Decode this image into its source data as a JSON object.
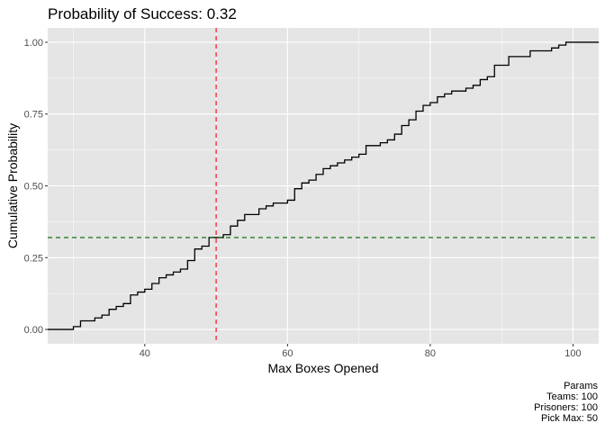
{
  "chart_data": {
    "type": "step",
    "title": "Probability of Success: 0.32",
    "xlabel": "Max Boxes Opened",
    "ylabel": "Cumulative Probability",
    "xlim": [
      26.4,
      103.6
    ],
    "ylim": [
      -0.05,
      1.05
    ],
    "x_ticks": [
      40,
      60,
      80,
      100
    ],
    "y_ticks": [
      0.0,
      0.25,
      0.5,
      0.75,
      1.0
    ],
    "x_tick_labels": [
      "40",
      "60",
      "80",
      "100"
    ],
    "y_tick_labels": [
      "0.00",
      "0.25",
      "0.50",
      "0.75",
      "1.00"
    ],
    "grid": true,
    "colors": {
      "panel": "#e5e5e5",
      "grid": "#ffffff",
      "line": "#000000",
      "vline": "#ff0000",
      "hline": "#006400"
    },
    "vline_x": 50,
    "hline_y": 0.32,
    "series": [
      {
        "x": [
          26.4,
          29,
          30,
          31,
          33,
          34,
          35,
          36,
          37,
          38,
          39,
          40,
          41,
          42,
          43,
          44,
          45,
          46,
          47,
          48,
          49,
          51,
          52,
          53,
          54,
          56,
          57,
          58,
          59,
          60,
          61,
          62,
          63,
          64,
          65,
          66,
          67,
          68,
          69,
          70,
          71,
          73,
          74,
          75,
          76,
          77,
          78,
          79,
          80,
          81,
          82,
          83,
          85,
          86,
          87,
          88,
          89,
          91,
          94,
          97,
          98,
          99,
          103.6
        ],
        "y": [
          0.0,
          0.0,
          0.01,
          0.03,
          0.04,
          0.05,
          0.07,
          0.08,
          0.09,
          0.12,
          0.13,
          0.14,
          0.16,
          0.18,
          0.19,
          0.2,
          0.21,
          0.24,
          0.28,
          0.29,
          0.32,
          0.33,
          0.36,
          0.38,
          0.4,
          0.42,
          0.43,
          0.44,
          0.44,
          0.45,
          0.49,
          0.51,
          0.52,
          0.54,
          0.56,
          0.57,
          0.58,
          0.59,
          0.6,
          0.61,
          0.64,
          0.65,
          0.66,
          0.68,
          0.71,
          0.73,
          0.76,
          0.78,
          0.79,
          0.81,
          0.82,
          0.83,
          0.84,
          0.85,
          0.87,
          0.88,
          0.92,
          0.95,
          0.97,
          0.98,
          0.99,
          1.0,
          1.0
        ]
      }
    ]
  },
  "caption": {
    "heading": "Params",
    "teams": "Teams: 100",
    "prisoners": "Prisoners: 100",
    "pick_max": "Pick Max: 50"
  }
}
